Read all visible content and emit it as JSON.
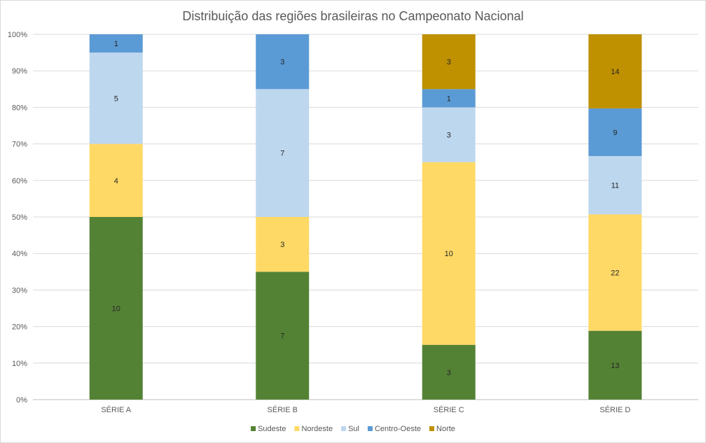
{
  "chart_data": {
    "type": "bar",
    "stacked": true,
    "normalized": true,
    "title": "Distribuição das regiões brasileiras no Campeonato Nacional",
    "xlabel": "",
    "ylabel": "",
    "ylim": [
      0,
      100
    ],
    "yticks": [
      "0%",
      "10%",
      "20%",
      "30%",
      "40%",
      "50%",
      "60%",
      "70%",
      "80%",
      "90%",
      "100%"
    ],
    "grid": true,
    "legend_position": "bottom",
    "categories": [
      "SÉRIE A",
      "SÉRIE B",
      "SÉRIE C",
      "SÉRIE D"
    ],
    "series": [
      {
        "name": "Sudeste",
        "color": "#548235",
        "values": [
          10,
          7,
          3,
          13
        ]
      },
      {
        "name": "Nordeste",
        "color": "#ffd966",
        "values": [
          4,
          3,
          10,
          22
        ]
      },
      {
        "name": "Sul",
        "color": "#bdd7ee",
        "values": [
          5,
          7,
          3,
          11
        ]
      },
      {
        "name": "Centro-Oeste",
        "color": "#5b9bd5",
        "values": [
          1,
          3,
          1,
          9
        ]
      },
      {
        "name": "Norte",
        "color": "#bf9000",
        "values": [
          0,
          0,
          3,
          14
        ]
      }
    ]
  }
}
